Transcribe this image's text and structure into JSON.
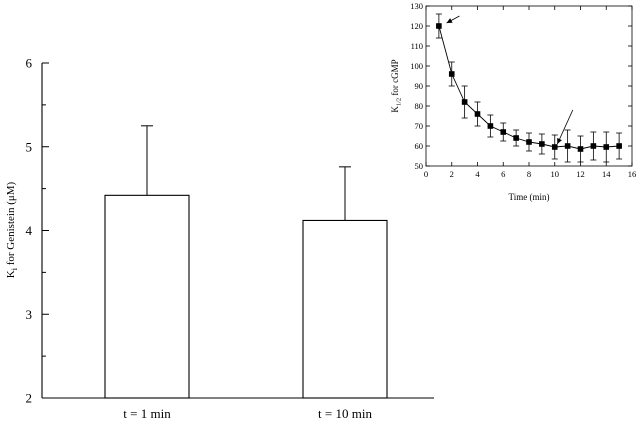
{
  "chart_data": [
    {
      "type": "bar",
      "title": "",
      "ylabel_main": "K",
      "ylabel_sub": "i",
      "ylabel_rest": " for Genistein (μM)",
      "categories": [
        "t = 1 min",
        "t = 10 min"
      ],
      "values": [
        4.42,
        4.12
      ],
      "errors": [
        0.83,
        0.64
      ],
      "ylim": [
        2,
        6
      ],
      "yticks": [
        2,
        3,
        4,
        5,
        6
      ],
      "grid": false,
      "bar_color": "#ffffff",
      "edge_color": "#000000"
    },
    {
      "type": "line",
      "title": "",
      "xlabel": "Time (min)",
      "ylabel_main": "K",
      "ylabel_sub": "1/2",
      "ylabel_rest": " for cGMP",
      "xlim": [
        0,
        16
      ],
      "ylim": [
        50,
        130
      ],
      "xticks": [
        0,
        2,
        4,
        6,
        8,
        10,
        12,
        14,
        16
      ],
      "yticks": [
        50,
        60,
        70,
        80,
        90,
        100,
        110,
        120,
        130
      ],
      "x": [
        1,
        2,
        3,
        4,
        5,
        6,
        7,
        8,
        9,
        10,
        11,
        12,
        13,
        14,
        15
      ],
      "y": [
        120,
        96,
        82,
        76,
        70,
        67,
        64,
        62,
        61,
        59.5,
        60,
        58.5,
        60,
        59.5,
        60
      ],
      "errors": [
        6,
        6,
        8,
        6,
        5.5,
        4.5,
        4,
        4.5,
        5,
        6,
        8,
        6.5,
        7,
        7.5,
        6.5
      ],
      "arrows": [
        {
          "x_from": 2.6,
          "y_from": 125,
          "x_to": 1.6,
          "y_to": 121.5
        },
        {
          "x_from": 11.4,
          "y_from": 78,
          "x_to": 10.2,
          "y_to": 61
        }
      ],
      "grid": false,
      "marker": "square"
    }
  ]
}
